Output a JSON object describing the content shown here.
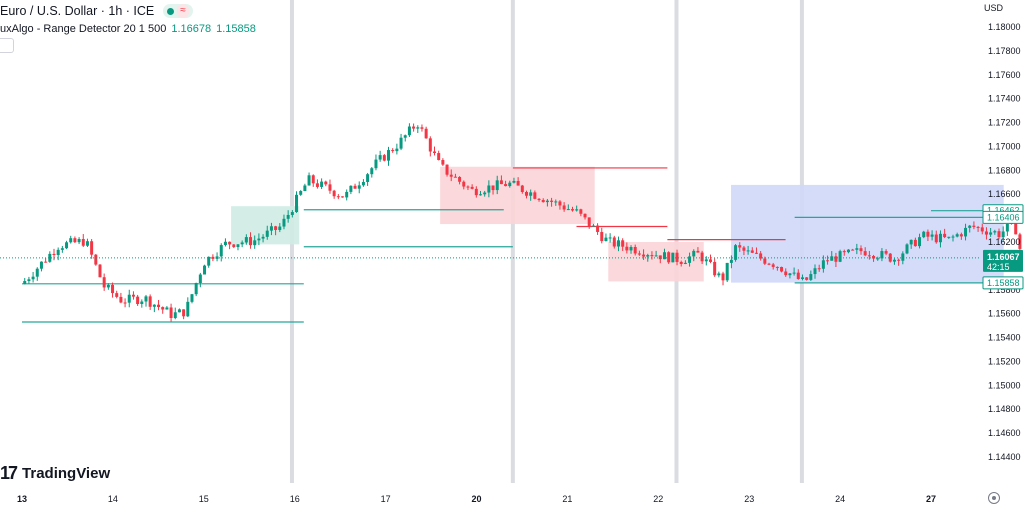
{
  "header": {
    "symbol_title": "Euro / U.S. Dollar · 1h · ICE",
    "live_icon": "green-dot",
    "wave_icon": "≈",
    "indicator_name": "uxAlgo - Range Detector 20 1 500",
    "indicator_value_1": "1.16678",
    "indicator_value_2": "1.15858"
  },
  "axis": {
    "currency": "USD"
  },
  "labels": {
    "range_top": "1.16462",
    "range_mid": "1.16406",
    "range_bottom": "1.15858",
    "last_price": "1.16067",
    "countdown": "42:15"
  },
  "logo": {
    "mark": "17",
    "text": "TradingView"
  },
  "colors": {
    "up": "#089981",
    "down": "#f23645",
    "range_green": "#cfece4",
    "range_red": "#f9d4d7",
    "range_blue": "#cfd8f9",
    "session_line": "#d1d4dc",
    "price_label_bg": "#089981"
  },
  "chart_data": {
    "type": "candlestick",
    "title": "Euro / U.S. Dollar · 1h · ICE",
    "y_tick_labels": [
      "1.18000",
      "1.17800",
      "1.17600",
      "1.17400",
      "1.17200",
      "1.17000",
      "1.16800",
      "1.16600",
      "1.16400",
      "1.16200",
      "1.16000",
      "1.15800",
      "1.15600",
      "1.15400",
      "1.15200",
      "1.15000",
      "1.14800",
      "1.14600",
      "1.14400"
    ],
    "ylim": [
      1.1433,
      1.1814
    ],
    "x_tick_labels": [
      "13",
      "14",
      "15",
      "16",
      "17",
      "20",
      "21",
      "22",
      "23",
      "24",
      "27"
    ],
    "bold_x_ticks": [
      "13",
      "20",
      "27"
    ],
    "grid": false,
    "last_price": 1.16067,
    "close_path": [
      {
        "x": 0,
        "y": 1.1585
      },
      {
        "x": 0.4,
        "y": 1.1617
      },
      {
        "x": 0.7,
        "y": 1.1621
      },
      {
        "x": 0.9,
        "y": 1.1583
      },
      {
        "x": 1.1,
        "y": 1.1571
      },
      {
        "x": 1.35,
        "y": 1.1573
      },
      {
        "x": 1.65,
        "y": 1.1559
      },
      {
        "x": 1.8,
        "y": 1.1562
      },
      {
        "x": 2.0,
        "y": 1.1603
      },
      {
        "x": 2.25,
        "y": 1.1619
      },
      {
        "x": 2.55,
        "y": 1.1621
      },
      {
        "x": 2.85,
        "y": 1.1633
      },
      {
        "x": 3.15,
        "y": 1.1672
      },
      {
        "x": 3.55,
        "y": 1.1658
      },
      {
        "x": 3.9,
        "y": 1.1686
      },
      {
        "x": 4.15,
        "y": 1.1703
      },
      {
        "x": 4.35,
        "y": 1.172
      },
      {
        "x": 4.6,
        "y": 1.1683
      },
      {
        "x": 4.95,
        "y": 1.1663
      },
      {
        "x": 5.35,
        "y": 1.1669
      },
      {
        "x": 5.7,
        "y": 1.1658
      },
      {
        "x": 6.1,
        "y": 1.1645
      },
      {
        "x": 6.45,
        "y": 1.162
      },
      {
        "x": 6.9,
        "y": 1.1611
      },
      {
        "x": 7.25,
        "y": 1.1605
      },
      {
        "x": 7.45,
        "y": 1.161
      },
      {
        "x": 7.7,
        "y": 1.1588
      },
      {
        "x": 7.85,
        "y": 1.1615
      },
      {
        "x": 8.3,
        "y": 1.1601
      },
      {
        "x": 8.6,
        "y": 1.1586
      },
      {
        "x": 8.85,
        "y": 1.1605
      },
      {
        "x": 9.25,
        "y": 1.1613
      },
      {
        "x": 9.6,
        "y": 1.1606
      },
      {
        "x": 9.9,
        "y": 1.1625
      },
      {
        "x": 10.2,
        "y": 1.1622
      },
      {
        "x": 10.45,
        "y": 1.1633
      },
      {
        "x": 10.75,
        "y": 1.1627
      },
      {
        "x": 10.92,
        "y": 1.1635
      },
      {
        "x": 11.0,
        "y": 1.16067
      }
    ],
    "ranges": [
      {
        "color": "green",
        "x": [
          2.3,
          3.05
        ],
        "y": [
          1.1618,
          1.165
        ]
      },
      {
        "color": "red",
        "x": [
          4.6,
          6.3
        ],
        "y": [
          1.1635,
          1.1683
        ]
      },
      {
        "color": "red",
        "x": [
          6.45,
          7.5
        ],
        "y": [
          1.1587,
          1.162
        ]
      },
      {
        "color": "blue",
        "x": [
          7.8,
          10.8
        ],
        "y": [
          1.1586,
          1.16678
        ]
      }
    ],
    "levels": [
      {
        "color": "green",
        "x": [
          0,
          3.1
        ],
        "y": 1.1585
      },
      {
        "color": "green",
        "x": [
          0,
          3.1
        ],
        "y": 1.1553
      },
      {
        "color": "green",
        "x": [
          3.1,
          5.3
        ],
        "y": 1.1647
      },
      {
        "color": "green",
        "x": [
          3.1,
          5.4
        ],
        "y": 1.1616
      },
      {
        "color": "red",
        "x": [
          5.4,
          7.1
        ],
        "y": 1.1682
      },
      {
        "color": "red",
        "x": [
          6.1,
          7.1
        ],
        "y": 1.1633
      },
      {
        "color": "red",
        "x": [
          7.1,
          8.4
        ],
        "y": 1.1622
      },
      {
        "color": "green",
        "x": [
          8.5,
          10.6
        ],
        "y": 1.16406
      },
      {
        "color": "green",
        "x": [
          10.0,
          10.8
        ],
        "y": 1.16462
      },
      {
        "color": "green",
        "x": [
          8.5,
          10.8
        ],
        "y": 1.15858
      }
    ]
  }
}
